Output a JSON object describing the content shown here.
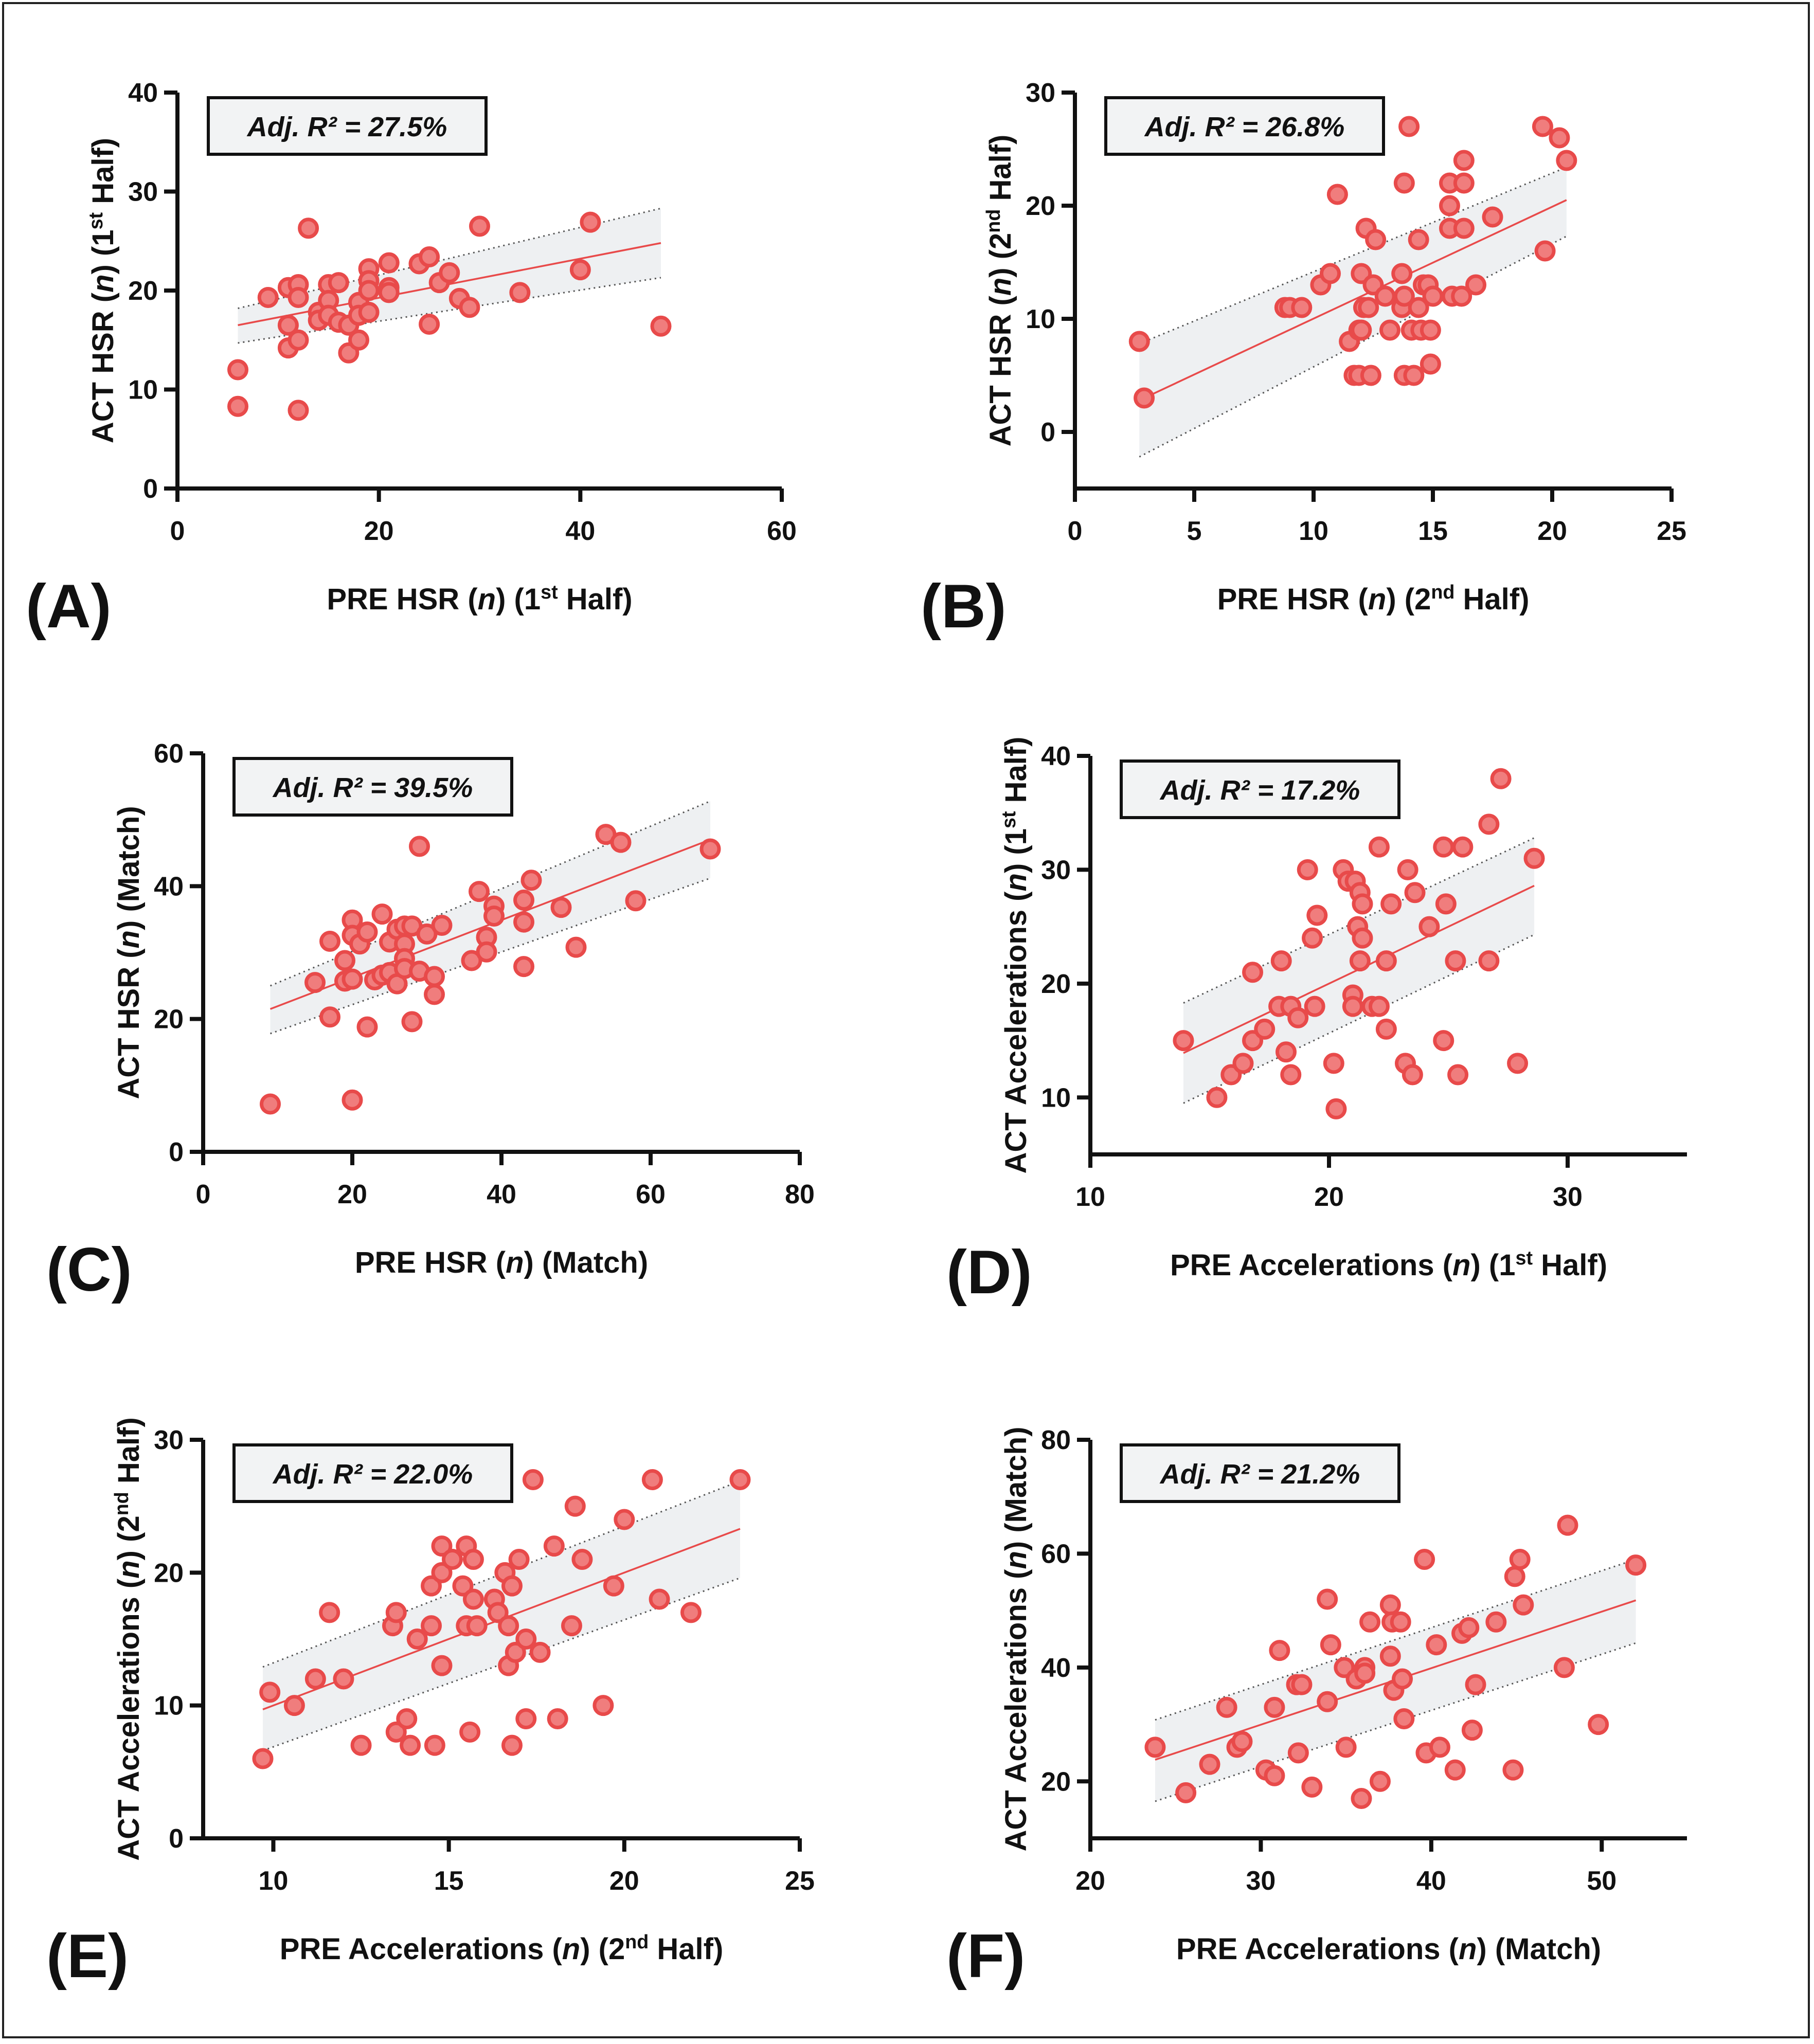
{
  "colors": {
    "point_fill": "#f07d7d",
    "point_stroke": "#e84a4a",
    "line": "#e84a4a",
    "band": "#eef0f2",
    "axis": "#111111"
  },
  "chart_data": [
    {
      "type": "scatter",
      "panel_label": "(A)",
      "annotation": "Adj. R² = 27.5%",
      "xlabel": "PRE HSR (n) (1st Half)",
      "ylabel": "ACT HSR (n) (1st Half)",
      "xlim": [
        0,
        60
      ],
      "ylim": [
        0,
        40
      ],
      "xticks": [
        0,
        20,
        40,
        60
      ],
      "yticks": [
        0,
        10,
        20,
        30,
        40
      ],
      "fit": {
        "x": [
          6,
          48
        ],
        "y": [
          16.5,
          24.8
        ],
        "ci_upper": [
          18.2,
          28.3
        ],
        "ci_lower": [
          14.7,
          21.3
        ]
      },
      "points": [
        [
          6,
          12
        ],
        [
          6,
          8.3
        ],
        [
          9,
          19.3
        ],
        [
          11,
          20.3
        ],
        [
          11,
          16.5
        ],
        [
          11,
          14.2
        ],
        [
          12,
          20.6
        ],
        [
          12,
          19.3
        ],
        [
          12,
          15
        ],
        [
          12,
          7.9
        ],
        [
          13,
          26.3
        ],
        [
          14,
          17.8
        ],
        [
          14,
          17
        ],
        [
          15,
          20.6
        ],
        [
          15,
          19
        ],
        [
          15,
          17.5
        ],
        [
          16,
          20.8
        ],
        [
          16,
          16.8
        ],
        [
          17,
          16.5
        ],
        [
          17,
          13.7
        ],
        [
          18,
          18.8
        ],
        [
          18,
          17.5
        ],
        [
          18,
          15
        ],
        [
          19,
          22.2
        ],
        [
          19,
          21
        ],
        [
          19,
          20
        ],
        [
          19,
          17.8
        ],
        [
          21,
          22.8
        ],
        [
          21,
          20.3
        ],
        [
          21,
          19.8
        ],
        [
          24,
          22.7
        ],
        [
          25,
          23.4
        ],
        [
          25,
          16.6
        ],
        [
          26,
          20.8
        ],
        [
          27,
          21.8
        ],
        [
          28,
          19.2
        ],
        [
          29,
          18.3
        ],
        [
          30,
          26.5
        ],
        [
          34,
          19.8
        ],
        [
          40,
          22.1
        ],
        [
          41,
          26.9
        ],
        [
          48,
          16.4
        ]
      ]
    },
    {
      "type": "scatter",
      "panel_label": "(B)",
      "annotation": "Adj. R² = 26.8%",
      "xlabel": "PRE HSR (n) (2nd Half)",
      "ylabel": "ACT HSR (n) (2nd Half)",
      "xlim": [
        0,
        25
      ],
      "ylim": [
        -5,
        30
      ],
      "xticks": [
        0,
        5,
        10,
        15,
        20,
        25
      ],
      "yticks": [
        0,
        10,
        20,
        30
      ],
      "fit": {
        "x": [
          2.7,
          20.6
        ],
        "y": [
          2.8,
          20.5
        ],
        "ci_upper": [
          7.8,
          23.4
        ],
        "ci_lower": [
          -2.2,
          17.3
        ]
      },
      "points": [
        [
          2.7,
          8
        ],
        [
          2.9,
          3
        ],
        [
          8.8,
          11
        ],
        [
          9,
          11
        ],
        [
          9.5,
          11
        ],
        [
          10.3,
          13
        ],
        [
          10.7,
          14
        ],
        [
          11,
          21
        ],
        [
          11.5,
          8
        ],
        [
          11.7,
          5
        ],
        [
          11.9,
          5
        ],
        [
          11.9,
          9
        ],
        [
          12,
          9
        ],
        [
          12,
          14
        ],
        [
          12.1,
          11
        ],
        [
          12.2,
          18
        ],
        [
          12.3,
          11
        ],
        [
          12.4,
          5
        ],
        [
          12.5,
          13
        ],
        [
          12.6,
          17
        ],
        [
          13,
          12
        ],
        [
          13.2,
          9
        ],
        [
          13.7,
          11
        ],
        [
          13.7,
          14
        ],
        [
          13.8,
          12
        ],
        [
          13.8,
          22
        ],
        [
          13.8,
          5
        ],
        [
          14,
          27
        ],
        [
          14.1,
          9
        ],
        [
          14.2,
          5
        ],
        [
          14.4,
          17
        ],
        [
          14.4,
          11
        ],
        [
          14.5,
          9
        ],
        [
          14.6,
          13
        ],
        [
          14.8,
          13
        ],
        [
          14.9,
          6
        ],
        [
          14.9,
          9
        ],
        [
          15,
          12
        ],
        [
          15.7,
          18
        ],
        [
          15.7,
          20
        ],
        [
          15.7,
          22
        ],
        [
          15.8,
          12
        ],
        [
          16.2,
          12
        ],
        [
          16.3,
          18
        ],
        [
          16.3,
          22
        ],
        [
          16.3,
          24
        ],
        [
          16.8,
          13
        ],
        [
          17.5,
          19
        ],
        [
          19.6,
          27
        ],
        [
          19.7,
          16
        ],
        [
          20.3,
          26
        ],
        [
          20.6,
          24
        ]
      ]
    },
    {
      "type": "scatter",
      "panel_label": "(C)",
      "annotation": "Adj. R² = 39.5%",
      "xlabel": "PRE HSR (n) (Match)",
      "ylabel": "ACT HSR (n) (Match)",
      "xlim": [
        0,
        80
      ],
      "ylim": [
        0,
        60
      ],
      "xticks": [
        0,
        20,
        40,
        60,
        80
      ],
      "yticks": [
        0,
        20,
        40,
        60
      ],
      "fit": {
        "x": [
          9,
          68
        ],
        "y": [
          21.5,
          47
        ],
        "ci_upper": [
          25,
          52.8
        ],
        "ci_lower": [
          17.8,
          41.2
        ]
      },
      "points": [
        [
          9,
          7.2
        ],
        [
          15,
          25.5
        ],
        [
          17,
          31.7
        ],
        [
          17,
          20.3
        ],
        [
          19,
          28.8
        ],
        [
          19,
          25.7
        ],
        [
          20,
          34.9
        ],
        [
          20,
          32.6
        ],
        [
          20,
          26
        ],
        [
          20,
          7.8
        ],
        [
          21,
          31.3
        ],
        [
          22,
          33.1
        ],
        [
          22,
          18.8
        ],
        [
          23,
          25.9
        ],
        [
          24,
          35.8
        ],
        [
          24,
          26.6
        ],
        [
          25,
          31.6
        ],
        [
          25,
          27
        ],
        [
          26,
          33.5
        ],
        [
          26,
          25.3
        ],
        [
          27,
          34
        ],
        [
          27,
          31.3
        ],
        [
          27,
          29.1
        ],
        [
          27,
          27.6
        ],
        [
          28,
          34
        ],
        [
          28,
          19.6
        ],
        [
          29,
          46
        ],
        [
          29,
          27.2
        ],
        [
          30,
          32.8
        ],
        [
          31,
          26.4
        ],
        [
          31,
          23.7
        ],
        [
          32,
          34.1
        ],
        [
          36,
          28.8
        ],
        [
          37,
          39.2
        ],
        [
          38,
          32.3
        ],
        [
          38,
          30.1
        ],
        [
          39,
          37
        ],
        [
          39,
          35.5
        ],
        [
          43,
          37.9
        ],
        [
          43,
          34.6
        ],
        [
          43,
          27.9
        ],
        [
          44,
          40.9
        ],
        [
          48,
          36.8
        ],
        [
          50,
          30.8
        ],
        [
          54,
          47.8
        ],
        [
          56,
          46.6
        ],
        [
          58,
          37.8
        ],
        [
          68,
          45.6
        ]
      ]
    },
    {
      "type": "scatter",
      "panel_label": "(D)",
      "annotation": "Adj. R² = 17.2%",
      "xlabel": "PRE Accelerations (n) (1st Half)",
      "ylabel": "ACT Accelerations (n) (1st Half)",
      "xlim": [
        10,
        35
      ],
      "ylim": [
        5,
        40
      ],
      "xticks": [
        10,
        20,
        30
      ],
      "yticks": [
        10,
        20,
        30,
        40
      ],
      "fit": {
        "x": [
          13.9,
          28.6
        ],
        "y": [
          13.9,
          28.6
        ],
        "ci_upper": [
          18.3,
          32.8
        ],
        "ci_lower": [
          9.5,
          24.3
        ]
      },
      "points": [
        [
          13.9,
          15
        ],
        [
          15.3,
          10
        ],
        [
          15.9,
          12
        ],
        [
          16.4,
          13
        ],
        [
          16.8,
          15
        ],
        [
          16.8,
          21
        ],
        [
          17.3,
          16
        ],
        [
          17.9,
          18
        ],
        [
          18,
          22
        ],
        [
          18.2,
          14
        ],
        [
          18.4,
          12
        ],
        [
          18.4,
          18
        ],
        [
          18.7,
          17
        ],
        [
          19.1,
          30
        ],
        [
          19.3,
          24
        ],
        [
          19.4,
          18
        ],
        [
          19.5,
          26
        ],
        [
          20.2,
          13
        ],
        [
          20.3,
          9
        ],
        [
          20.6,
          30
        ],
        [
          20.8,
          29
        ],
        [
          21,
          19
        ],
        [
          21,
          18
        ],
        [
          21.1,
          29
        ],
        [
          21.2,
          25
        ],
        [
          21.3,
          28
        ],
        [
          21.3,
          22
        ],
        [
          21.4,
          27
        ],
        [
          21.4,
          24
        ],
        [
          21.8,
          18
        ],
        [
          22.1,
          32
        ],
        [
          22.1,
          18
        ],
        [
          22.4,
          22
        ],
        [
          22.4,
          16
        ],
        [
          22.6,
          27
        ],
        [
          23.2,
          13
        ],
        [
          23.3,
          30
        ],
        [
          23.5,
          12
        ],
        [
          23.6,
          28
        ],
        [
          24.2,
          25
        ],
        [
          24.8,
          32
        ],
        [
          24.8,
          15
        ],
        [
          24.9,
          27
        ],
        [
          25.3,
          22
        ],
        [
          25.4,
          12
        ],
        [
          25.6,
          32
        ],
        [
          26.7,
          34
        ],
        [
          26.7,
          22
        ],
        [
          27.2,
          38
        ],
        [
          27.9,
          13
        ],
        [
          28.6,
          31
        ]
      ]
    },
    {
      "type": "scatter",
      "panel_label": "(E)",
      "annotation": "Adj. R² = 22.0%",
      "xlabel": "PRE Accelerations (n) (2nd Half)",
      "ylabel": "ACT Accelerations (n) (2nd Half)",
      "xlim": [
        8,
        25
      ],
      "ylim": [
        0,
        30
      ],
      "xticks": [
        10,
        15,
        20,
        25
      ],
      "yticks": [
        0,
        10,
        20,
        30
      ],
      "fit": {
        "x": [
          9.7,
          23.3
        ],
        "y": [
          9.7,
          23.3
        ],
        "ci_upper": [
          12.9,
          26.9
        ],
        "ci_lower": [
          6.6,
          19.6
        ]
      },
      "points": [
        [
          9.7,
          6
        ],
        [
          9.9,
          11
        ],
        [
          10.6,
          10
        ],
        [
          11.2,
          12
        ],
        [
          11.6,
          17
        ],
        [
          12,
          12
        ],
        [
          12.5,
          7
        ],
        [
          13.4,
          16
        ],
        [
          13.5,
          8
        ],
        [
          13.5,
          17
        ],
        [
          13.8,
          9
        ],
        [
          13.9,
          7
        ],
        [
          14.1,
          15
        ],
        [
          14.5,
          16
        ],
        [
          14.5,
          19
        ],
        [
          14.6,
          7
        ],
        [
          14.8,
          20
        ],
        [
          14.8,
          22
        ],
        [
          14.8,
          13
        ],
        [
          15.1,
          21
        ],
        [
          15.4,
          19
        ],
        [
          15.5,
          16
        ],
        [
          15.5,
          22
        ],
        [
          15.6,
          8
        ],
        [
          15.7,
          21
        ],
        [
          15.7,
          18
        ],
        [
          15.8,
          16
        ],
        [
          16.3,
          18
        ],
        [
          16.4,
          17
        ],
        [
          16.6,
          20
        ],
        [
          16.7,
          16
        ],
        [
          16.7,
          13
        ],
        [
          16.8,
          7
        ],
        [
          16.8,
          19
        ],
        [
          16.9,
          14
        ],
        [
          17,
          21
        ],
        [
          17.2,
          15
        ],
        [
          17.2,
          9
        ],
        [
          17.4,
          27
        ],
        [
          17.6,
          14
        ],
        [
          18,
          22
        ],
        [
          18.1,
          9
        ],
        [
          18.5,
          16
        ],
        [
          18.6,
          25
        ],
        [
          18.8,
          21
        ],
        [
          19.4,
          10
        ],
        [
          19.7,
          19
        ],
        [
          20,
          24
        ],
        [
          20.8,
          27
        ],
        [
          21,
          18
        ],
        [
          21.9,
          17
        ],
        [
          23.3,
          27
        ]
      ]
    },
    {
      "type": "scatter",
      "panel_label": "(F)",
      "annotation": "Adj. R² = 21.2%",
      "xlabel": "PRE Accelerations (n) (Match)",
      "ylabel": "ACT Accelerations (n) (Match)",
      "xlim": [
        20,
        55
      ],
      "ylim": [
        10,
        80
      ],
      "xticks": [
        20,
        30,
        40,
        50
      ],
      "yticks": [
        20,
        40,
        60,
        80
      ],
      "fit": {
        "x": [
          23.8,
          52
        ],
        "y": [
          23.8,
          51.8
        ],
        "ci_upper": [
          30.8,
          59
        ],
        "ci_lower": [
          16.5,
          44.3
        ]
      },
      "points": [
        [
          23.8,
          26
        ],
        [
          25.6,
          18
        ],
        [
          27,
          23
        ],
        [
          28,
          33
        ],
        [
          28.6,
          26
        ],
        [
          28.9,
          27
        ],
        [
          30.3,
          22
        ],
        [
          30.8,
          21
        ],
        [
          30.8,
          33
        ],
        [
          31.1,
          43
        ],
        [
          32.1,
          37
        ],
        [
          32.2,
          25
        ],
        [
          32.4,
          37
        ],
        [
          33,
          19
        ],
        [
          33.9,
          34
        ],
        [
          33.9,
          52
        ],
        [
          34.1,
          44
        ],
        [
          34.9,
          40
        ],
        [
          35,
          26
        ],
        [
          35.6,
          38
        ],
        [
          35.9,
          17
        ],
        [
          36.1,
          40
        ],
        [
          36.1,
          39
        ],
        [
          36.4,
          48
        ],
        [
          37,
          20
        ],
        [
          37.6,
          42
        ],
        [
          37.6,
          51
        ],
        [
          37.7,
          48
        ],
        [
          37.8,
          36
        ],
        [
          38.2,
          48
        ],
        [
          38.3,
          38
        ],
        [
          38.4,
          31
        ],
        [
          39.6,
          59
        ],
        [
          39.7,
          25
        ],
        [
          40.3,
          44
        ],
        [
          40.5,
          26
        ],
        [
          41.4,
          22
        ],
        [
          41.8,
          46
        ],
        [
          42.2,
          47
        ],
        [
          42.4,
          29
        ],
        [
          42.6,
          37
        ],
        [
          43.8,
          48
        ],
        [
          44.8,
          22
        ],
        [
          44.9,
          56
        ],
        [
          45.2,
          59
        ],
        [
          45.4,
          51
        ],
        [
          47.8,
          40
        ],
        [
          48,
          65
        ],
        [
          49.8,
          30
        ],
        [
          52,
          58
        ]
      ]
    }
  ]
}
